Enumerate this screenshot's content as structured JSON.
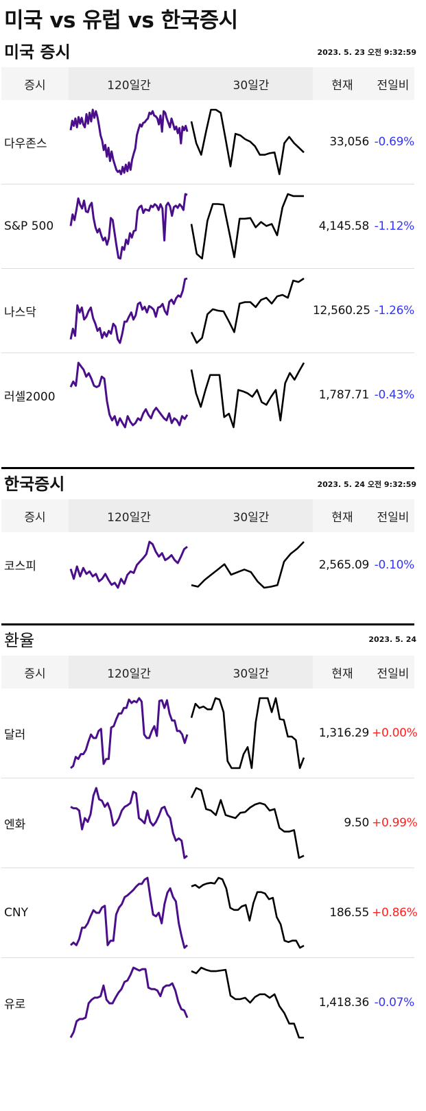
{
  "page": {
    "title": "미국 vs 유럽 vs 한국증시"
  },
  "colors": {
    "line120": "#4b0e8a",
    "line30": "#000000",
    "negative": "#3333ff",
    "positive": "#ff2222"
  },
  "headers": {
    "name": "증시",
    "d120": "120일간",
    "d30": "30일간",
    "current": "현재",
    "change": "전일비"
  },
  "sections": [
    {
      "id": "us",
      "title": "미국 증시",
      "date": "2023. 5. 23 오전 9:32:59",
      "rows": [
        {
          "name": "다우존스",
          "current": "33,056",
          "change": "-0.69%",
          "dir": "neg",
          "s120": [
            62,
            75,
            68,
            78,
            66,
            80,
            71,
            79,
            70,
            66,
            84,
            71,
            86,
            74,
            90,
            79,
            88,
            80,
            68,
            55,
            48,
            35,
            42,
            26,
            38,
            20,
            33,
            22,
            15,
            8,
            5,
            7,
            2,
            12,
            4,
            15,
            6,
            18,
            8,
            22,
            30,
            37,
            55,
            63,
            70,
            67,
            72,
            73,
            76,
            78,
            86,
            84,
            88,
            82,
            81,
            78,
            70,
            82,
            60,
            88,
            86,
            78,
            72,
            66,
            78,
            71,
            63,
            67,
            58,
            65,
            44,
            67,
            62,
            68,
            60
          ],
          "s30": [
            78,
            50,
            35,
            65,
            93,
            93,
            89,
            55,
            20,
            62,
            60,
            55,
            52,
            46,
            35,
            35,
            37,
            38,
            10,
            50,
            58,
            50,
            44,
            38
          ]
        },
        {
          "name": "S&P 500",
          "current": "4,145.58",
          "change": "-1.12%",
          "dir": "neg",
          "s120": [
            50,
            66,
            58,
            72,
            88,
            79,
            74,
            85,
            70,
            69,
            78,
            82,
            61,
            48,
            41,
            46,
            37,
            30,
            34,
            24,
            33,
            61,
            58,
            40,
            22,
            6,
            5,
            21,
            17,
            31,
            25,
            40,
            34,
            43,
            44,
            71,
            76,
            78,
            68,
            73,
            72,
            71,
            78,
            76,
            80,
            78,
            72,
            80,
            74,
            30,
            78,
            82,
            77,
            64,
            76,
            78,
            75,
            80,
            77,
            72,
            94,
            93
          ],
          "s30": [
            55,
            10,
            3,
            60,
            85,
            85,
            84,
            45,
            5,
            63,
            63,
            64,
            50,
            58,
            52,
            55,
            38,
            80,
            100,
            97,
            97,
            97
          ]
        },
        {
          "name": "나스닥",
          "current": "12,560.25",
          "change": "-1.26%",
          "dir": "neg",
          "s120": [
            10,
            25,
            15,
            58,
            48,
            55,
            38,
            42,
            50,
            55,
            40,
            32,
            22,
            26,
            12,
            20,
            14,
            22,
            18,
            32,
            28,
            10,
            5,
            18,
            35,
            35,
            42,
            48,
            38,
            44,
            60,
            62,
            52,
            56,
            48,
            57,
            55,
            52,
            42,
            55,
            56,
            60,
            50,
            45,
            63,
            66,
            60,
            68,
            72,
            70,
            79,
            95,
            96
          ],
          "s30": [
            20,
            5,
            12,
            45,
            52,
            50,
            49,
            35,
            20,
            60,
            62,
            62,
            55,
            65,
            68,
            60,
            70,
            72,
            68,
            92,
            90,
            95
          ]
        },
        {
          "name": "러셀2000",
          "current": "1,787.71",
          "change": "-0.43%",
          "dir": "neg",
          "s120": [
            60,
            68,
            62,
            95,
            90,
            85,
            75,
            80,
            72,
            62,
            60,
            62,
            75,
            72,
            40,
            20,
            12,
            18,
            5,
            15,
            8,
            2,
            18,
            10,
            5,
            8,
            15,
            12,
            22,
            28,
            20,
            15,
            25,
            30,
            25,
            20,
            15,
            12,
            22,
            8,
            15,
            12,
            5,
            18,
            14,
            20
          ],
          "s30": [
            90,
            55,
            35,
            60,
            82,
            82,
            82,
            20,
            25,
            5,
            60,
            58,
            55,
            50,
            60,
            42,
            38,
            50,
            60,
            15,
            70,
            85,
            75,
            88,
            100
          ]
        }
      ]
    },
    {
      "id": "kr",
      "title": "한국증시",
      "date": "2023. 5. 24 오전 9:32:59",
      "rows": [
        {
          "name": "코스피",
          "current": "2,565.09",
          "change": "-0.10%",
          "dir": "neg",
          "s120": [
            40,
            20,
            45,
            25,
            42,
            30,
            35,
            25,
            30,
            15,
            20,
            30,
            18,
            8,
            12,
            2,
            20,
            10,
            28,
            35,
            32,
            48,
            55,
            62,
            70,
            95,
            90,
            75,
            65,
            72,
            58,
            62,
            68,
            58,
            52,
            65,
            80,
            85
          ],
          "s30": [
            15,
            12,
            25,
            35,
            45,
            55,
            35,
            40,
            45,
            40,
            22,
            10,
            12,
            15,
            60,
            75,
            85,
            98
          ]
        }
      ]
    },
    {
      "id": "fx",
      "title": "환율",
      "date": "2023. 5. 24",
      "rows": [
        {
          "name": "달러",
          "current": "1,316.29",
          "change": "+0.00%",
          "dir": "pos",
          "s120": [
            2,
            5,
            18,
            15,
            22,
            22,
            28,
            40,
            50,
            45,
            45,
            55,
            58,
            8,
            15,
            15,
            60,
            62,
            72,
            80,
            80,
            88,
            88,
            100,
            95,
            98,
            96,
            102,
            97,
            50,
            45,
            45,
            55,
            62,
            48,
            98,
            99,
            88,
            99,
            80,
            70,
            70,
            55,
            55,
            50,
            38,
            50
          ],
          "s30": [
            72,
            92,
            86,
            88,
            84,
            84,
            100,
            98,
            80,
            10,
            0,
            0,
            0,
            20,
            30,
            0,
            65,
            100,
            100,
            100,
            80,
            100,
            70,
            69,
            45,
            45,
            40,
            0,
            15
          ]
        },
        {
          "name": "엔화",
          "current": "9.50",
          "change": "+0.99%",
          "dir": "pos",
          "s120": [
            70,
            68,
            68,
            65,
            40,
            55,
            50,
            60,
            85,
            95,
            80,
            78,
            70,
            75,
            65,
            45,
            48,
            55,
            65,
            70,
            72,
            75,
            90,
            88,
            55,
            52,
            48,
            65,
            50,
            45,
            50,
            58,
            68,
            70,
            60,
            55,
            35,
            25,
            28,
            25,
            2,
            5
          ],
          "s30": [
            85,
            98,
            95,
            70,
            68,
            62,
            82,
            62,
            60,
            58,
            65,
            66,
            72,
            76,
            78,
            76,
            68,
            70,
            45,
            40,
            40,
            42,
            5,
            8
          ]
        },
        {
          "name": "CNY",
          "current": "186.55",
          "change": "+0.86%",
          "dir": "pos",
          "s120": [
            5,
            8,
            5,
            12,
            25,
            25,
            30,
            38,
            45,
            42,
            42,
            48,
            50,
            5,
            10,
            10,
            40,
            48,
            52,
            60,
            62,
            65,
            68,
            72,
            75,
            75,
            80,
            82,
            60,
            40,
            38,
            42,
            30,
            52,
            65,
            70,
            60,
            55,
            30,
            15,
            2,
            5
          ],
          "s30": [
            88,
            90,
            86,
            90,
            92,
            93,
            92,
            100,
            98,
            85,
            58,
            55,
            55,
            60,
            62,
            40,
            65,
            80,
            80,
            78,
            70,
            72,
            45,
            35,
            12,
            10,
            12,
            12,
            2,
            5
          ]
        },
        {
          "name": "유로",
          "current": "1,418.36",
          "change": "-0.07%",
          "dir": "pos_is_false_neg",
          "s120": [
            2,
            10,
            25,
            28,
            28,
            30,
            50,
            55,
            58,
            58,
            60,
            75,
            55,
            50,
            50,
            58,
            65,
            70,
            80,
            82,
            90,
            100,
            98,
            96,
            98,
            98,
            72,
            70,
            70,
            68,
            60,
            72,
            75,
            75,
            78,
            68,
            52,
            42,
            40,
            30
          ],
          "s30": [
            95,
            92,
            100,
            97,
            95,
            95,
            96,
            97,
            60,
            55,
            55,
            57,
            50,
            58,
            62,
            62,
            57,
            62,
            45,
            35,
            20,
            20,
            0,
            0
          ]
        }
      ]
    }
  ]
}
